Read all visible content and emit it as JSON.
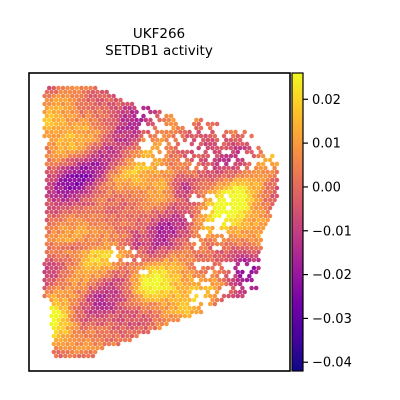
{
  "chart_data": {
    "type": "heatmap",
    "title": "UKF266",
    "subtitle": "SETDB1 activity",
    "xlabel": "",
    "ylabel": "",
    "colormap": "plasma",
    "colorbar": {
      "range": [
        -0.042,
        0.026
      ],
      "ticks": [
        0.02,
        0.01,
        0.0,
        -0.01,
        -0.02,
        -0.03,
        -0.04
      ],
      "tick_labels": [
        "0.02",
        "0.01",
        "0.00",
        "−0.01",
        "−0.02",
        "−0.03",
        "−0.04"
      ]
    },
    "grid": false,
    "legend": "colorbar-right"
  },
  "colors": {
    "plasma_stops": [
      "#0d0887",
      "#46039f",
      "#7201a8",
      "#9c179e",
      "#bd3786",
      "#d8576b",
      "#ed7953",
      "#fb9f3a",
      "#fdca26",
      "#f0f921"
    ]
  }
}
